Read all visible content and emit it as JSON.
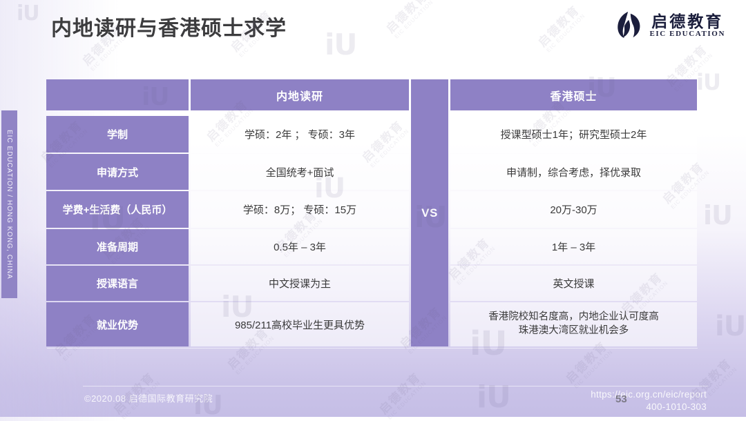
{
  "slide": {
    "title": "内地读研与香港硕士求学",
    "page_number": "53"
  },
  "logo": {
    "cn": "启德教育",
    "en": "EIC EDUCATION"
  },
  "sidebar": {
    "label": "EIC EDUCATION / HONG KONG, CHINA"
  },
  "table": {
    "col_headers": [
      "内地读研",
      "香港硕士"
    ],
    "vs_label": "VS",
    "rows": [
      {
        "label": "学制",
        "mainland": "学硕：2年 ；  专硕：3年",
        "hongkong": "授课型硕士1年；研究型硕士2年"
      },
      {
        "label": "申请方式",
        "mainland": "全国统考+面试",
        "hongkong": "申请制，综合考虑，择优录取"
      },
      {
        "label": "学费+生活费（人民币）",
        "mainland": "学硕：8万；  专硕：15万",
        "hongkong": "20万-30万"
      },
      {
        "label": "准备周期",
        "mainland": "0.5年 – 3年",
        "hongkong": "1年 – 3年"
      },
      {
        "label": "授课语言",
        "mainland": "中文授课为主",
        "hongkong": "英文授课"
      },
      {
        "label": "就业优势",
        "mainland": "985/211高校毕业生更具优势",
        "hongkong": "香港院校知名度高，内地企业认可度高",
        "hongkong2": "珠港澳大湾区就业机会多"
      }
    ]
  },
  "footer": {
    "copyright": "©2020.08 启德国际教育研究院",
    "url": "https://eic.org.cn/eic/report",
    "phone": "400-1010-303"
  },
  "watermark": {
    "cn": "启德教育",
    "en": "EIC EDUCATION",
    "mark": "iU"
  },
  "colors": {
    "accent_purple": "#8e81c5",
    "title_text": "#3c3c3e",
    "logo_navy": "#1b1e3c",
    "footer_bg": "#c9c2e8"
  }
}
